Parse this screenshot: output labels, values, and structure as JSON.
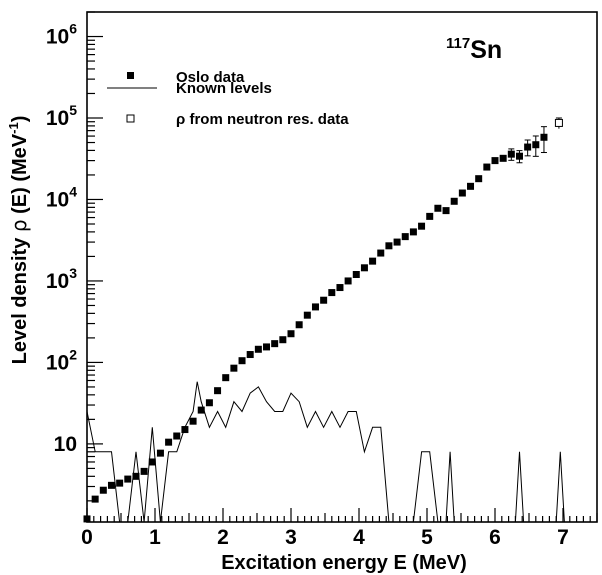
{
  "chart_data": {
    "type": "scatter",
    "isotope": {
      "mass": "117",
      "symbol": "Sn"
    },
    "xlabel": "Excitation energy E (MeV)",
    "ylabel": {
      "prefix": "Level density ",
      "rho": "ρ",
      "mid": " (E) (MeV",
      "exp": "-1",
      "suffix": ")"
    },
    "xlim": [
      0,
      7.5
    ],
    "ylim": [
      1.1,
      2000000
    ],
    "yscale": "log",
    "x_ticks": [
      0,
      1,
      2,
      3,
      4,
      5,
      6,
      7
    ],
    "x_tick_labels": [
      "0",
      "1",
      "2",
      "3",
      "4",
      "5",
      "6",
      "7"
    ],
    "y_ticks": [
      {
        "value": 10,
        "base": "10",
        "exp": ""
      },
      {
        "value": 100,
        "base": "10",
        "exp": "2"
      },
      {
        "value": 1000,
        "base": "10",
        "exp": "3"
      },
      {
        "value": 10000,
        "base": "10",
        "exp": "4"
      },
      {
        "value": 100000,
        "base": "10",
        "exp": "5"
      },
      {
        "value": 1000000,
        "base": "10",
        "exp": "6"
      }
    ],
    "legend": {
      "position": "top-left",
      "entries": [
        "Oslo data",
        "Known levels",
        "ρ from neutron res. data"
      ]
    },
    "series": [
      {
        "name": "Oslo data",
        "marker": "filled-square",
        "points": [
          [
            0.0,
            1.2
          ],
          [
            0.12,
            2.1
          ],
          [
            0.24,
            2.7
          ],
          [
            0.36,
            3.1
          ],
          [
            0.48,
            3.3
          ],
          [
            0.6,
            3.7
          ],
          [
            0.72,
            4.0
          ],
          [
            0.84,
            4.6
          ],
          [
            0.96,
            6.0
          ],
          [
            1.08,
            7.7
          ],
          [
            1.2,
            10.5
          ],
          [
            1.32,
            12.5
          ],
          [
            1.44,
            15.0
          ],
          [
            1.56,
            19.0
          ],
          [
            1.68,
            26.0
          ],
          [
            1.8,
            32.0
          ],
          [
            1.92,
            45.0
          ],
          [
            2.04,
            65.0
          ],
          [
            2.16,
            85.0
          ],
          [
            2.28,
            105.0
          ],
          [
            2.4,
            125.0
          ],
          [
            2.52,
            145.0
          ],
          [
            2.64,
            155.0
          ],
          [
            2.76,
            170.0
          ],
          [
            2.88,
            190.0
          ],
          [
            3.0,
            225.0
          ],
          [
            3.12,
            290.0
          ],
          [
            3.24,
            380.0
          ],
          [
            3.36,
            480.0
          ],
          [
            3.48,
            580.0
          ],
          [
            3.6,
            720.0
          ],
          [
            3.72,
            830.0
          ],
          [
            3.84,
            1000.0
          ],
          [
            3.96,
            1200.0
          ],
          [
            4.08,
            1450.0
          ],
          [
            4.2,
            1750.0
          ],
          [
            4.32,
            2200.0
          ],
          [
            4.44,
            2700.0
          ],
          [
            4.56,
            3000.0
          ],
          [
            4.68,
            3500.0
          ],
          [
            4.8,
            4000.0
          ],
          [
            4.92,
            4700.0
          ],
          [
            5.04,
            6200.0
          ],
          [
            5.16,
            7800.0
          ],
          [
            5.28,
            7300.0
          ],
          [
            5.4,
            9500.0
          ],
          [
            5.52,
            12000.0
          ],
          [
            5.64,
            14500.0
          ],
          [
            5.76,
            18000.0
          ],
          [
            5.88,
            25000.0
          ],
          [
            6.0,
            30000.0
          ],
          [
            6.12,
            32000.0
          ],
          [
            6.24,
            36000.0
          ],
          [
            6.36,
            34000.0
          ],
          [
            6.48,
            44000.0
          ],
          [
            6.6,
            47000.0
          ],
          [
            6.72,
            58000.0
          ]
        ],
        "errors": [
          [
            6.24,
            0.16
          ],
          [
            6.36,
            0.17
          ],
          [
            6.48,
            0.22
          ],
          [
            6.6,
            0.28
          ],
          [
            6.72,
            0.35
          ]
        ]
      },
      {
        "name": "Known levels",
        "style": "line",
        "points": [
          [
            0.0,
            25
          ],
          [
            0.12,
            8
          ],
          [
            0.24,
            8
          ],
          [
            0.36,
            8
          ],
          [
            0.48,
            1
          ],
          [
            0.6,
            1
          ],
          [
            0.72,
            8
          ],
          [
            0.84,
            1
          ],
          [
            0.96,
            16
          ],
          [
            1.08,
            1
          ],
          [
            1.2,
            8
          ],
          [
            1.32,
            8
          ],
          [
            1.44,
            16
          ],
          [
            1.56,
            25
          ],
          [
            1.62,
            58
          ],
          [
            1.68,
            33
          ],
          [
            1.8,
            16
          ],
          [
            1.92,
            25
          ],
          [
            2.04,
            16
          ],
          [
            2.16,
            33
          ],
          [
            2.28,
            25
          ],
          [
            2.4,
            42
          ],
          [
            2.52,
            50
          ],
          [
            2.64,
            33
          ],
          [
            2.76,
            25
          ],
          [
            2.88,
            25
          ],
          [
            3.0,
            42
          ],
          [
            3.12,
            33
          ],
          [
            3.24,
            16
          ],
          [
            3.36,
            25
          ],
          [
            3.48,
            16
          ],
          [
            3.6,
            25
          ],
          [
            3.72,
            16
          ],
          [
            3.84,
            25
          ],
          [
            3.96,
            25
          ],
          [
            4.08,
            8
          ],
          [
            4.2,
            16
          ],
          [
            4.32,
            16
          ],
          [
            4.44,
            1
          ],
          [
            4.56,
            1
          ],
          [
            4.68,
            1
          ],
          [
            4.8,
            1
          ],
          [
            4.92,
            8
          ],
          [
            5.04,
            8
          ],
          [
            5.16,
            1
          ],
          [
            5.28,
            1
          ],
          [
            5.34,
            8
          ],
          [
            5.4,
            1
          ],
          [
            6.3,
            1
          ],
          [
            6.36,
            8
          ],
          [
            6.42,
            1
          ],
          [
            6.9,
            1
          ],
          [
            6.96,
            8
          ],
          [
            7.02,
            1
          ],
          [
            7.5,
            1
          ]
        ]
      },
      {
        "name": "ρ from neutron res. data",
        "marker": "open-square",
        "points": [
          [
            6.94,
            87000
          ]
        ],
        "errors": [
          [
            6.94,
            0.15
          ]
        ]
      }
    ]
  }
}
